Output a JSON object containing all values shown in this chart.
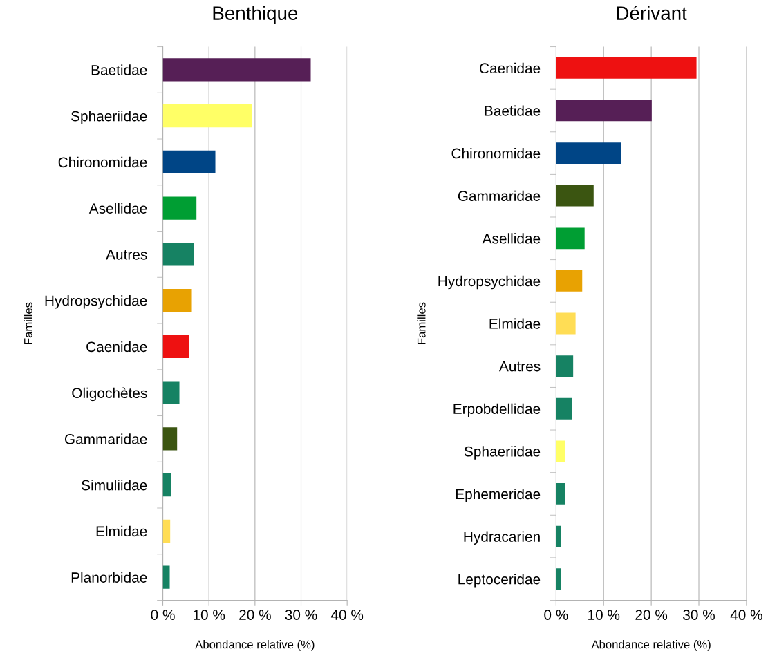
{
  "chart_data": [
    {
      "type": "bar",
      "orientation": "horizontal",
      "title": "Benthique",
      "xlabel": "Abondance relative (%)",
      "ylabel": "Familles",
      "grid": "x",
      "legend": false,
      "categories": [
        "Baetidae",
        "Sphaeriidae",
        "Chironomidae",
        "Asellidae",
        "Autres",
        "Hydropsychidae",
        "Caenidae",
        "Oligochètes",
        "Gammaridae",
        "Simuliidae",
        "Elmidae",
        "Planorbidae"
      ],
      "values": [
        32.1,
        19.3,
        11.4,
        7.3,
        6.7,
        6.3,
        5.7,
        3.6,
        3.1,
        1.8,
        1.6,
        1.5
      ],
      "colors": [
        "#561f56",
        "#ffff66",
        "#004586",
        "#009e33",
        "#168263",
        "#e8a202",
        "#ee1111",
        "#168263",
        "#3b5511",
        "#168263",
        "#ffdd55",
        "#168263"
      ],
      "xlim": [
        0,
        40
      ],
      "xticks": [
        {
          "value": 0,
          "label": "0 %"
        },
        {
          "value": 10,
          "label": "10 %"
        },
        {
          "value": 20,
          "label": "20 %"
        },
        {
          "value": 30,
          "label": "30 %"
        },
        {
          "value": 40,
          "label": "40 %"
        }
      ]
    },
    {
      "type": "bar",
      "orientation": "horizontal",
      "title": "Dérivant",
      "xlabel": "Abondance relative (%)",
      "ylabel": "Familles",
      "grid": "x",
      "legend": false,
      "categories": [
        "Caenidae",
        "Baetidae",
        "Chironomidae",
        "Gammaridae",
        "Asellidae",
        "Hydropsychidae",
        "Elmidae",
        "Autres",
        "Erpobdellidae",
        "Sphaeriidae",
        "Ephemeridae",
        "Hydracarien",
        "Leptoceridae"
      ],
      "values": [
        29.5,
        20.1,
        13.6,
        7.9,
        6.0,
        5.5,
        4.1,
        3.6,
        3.4,
        1.9,
        1.9,
        1.0,
        1.0
      ],
      "colors": [
        "#ee1111",
        "#561f56",
        "#004586",
        "#3b5511",
        "#009e33",
        "#e8a202",
        "#ffdd55",
        "#168263",
        "#168263",
        "#ffff66",
        "#168263",
        "#168263",
        "#168263"
      ],
      "xlim": [
        0,
        40
      ],
      "xticks": [
        {
          "value": 0,
          "label": "0 %"
        },
        {
          "value": 10,
          "label": "10 %"
        },
        {
          "value": 20,
          "label": "20 %"
        },
        {
          "value": 30,
          "label": "30 %"
        },
        {
          "value": 40,
          "label": "40 %"
        }
      ]
    }
  ]
}
